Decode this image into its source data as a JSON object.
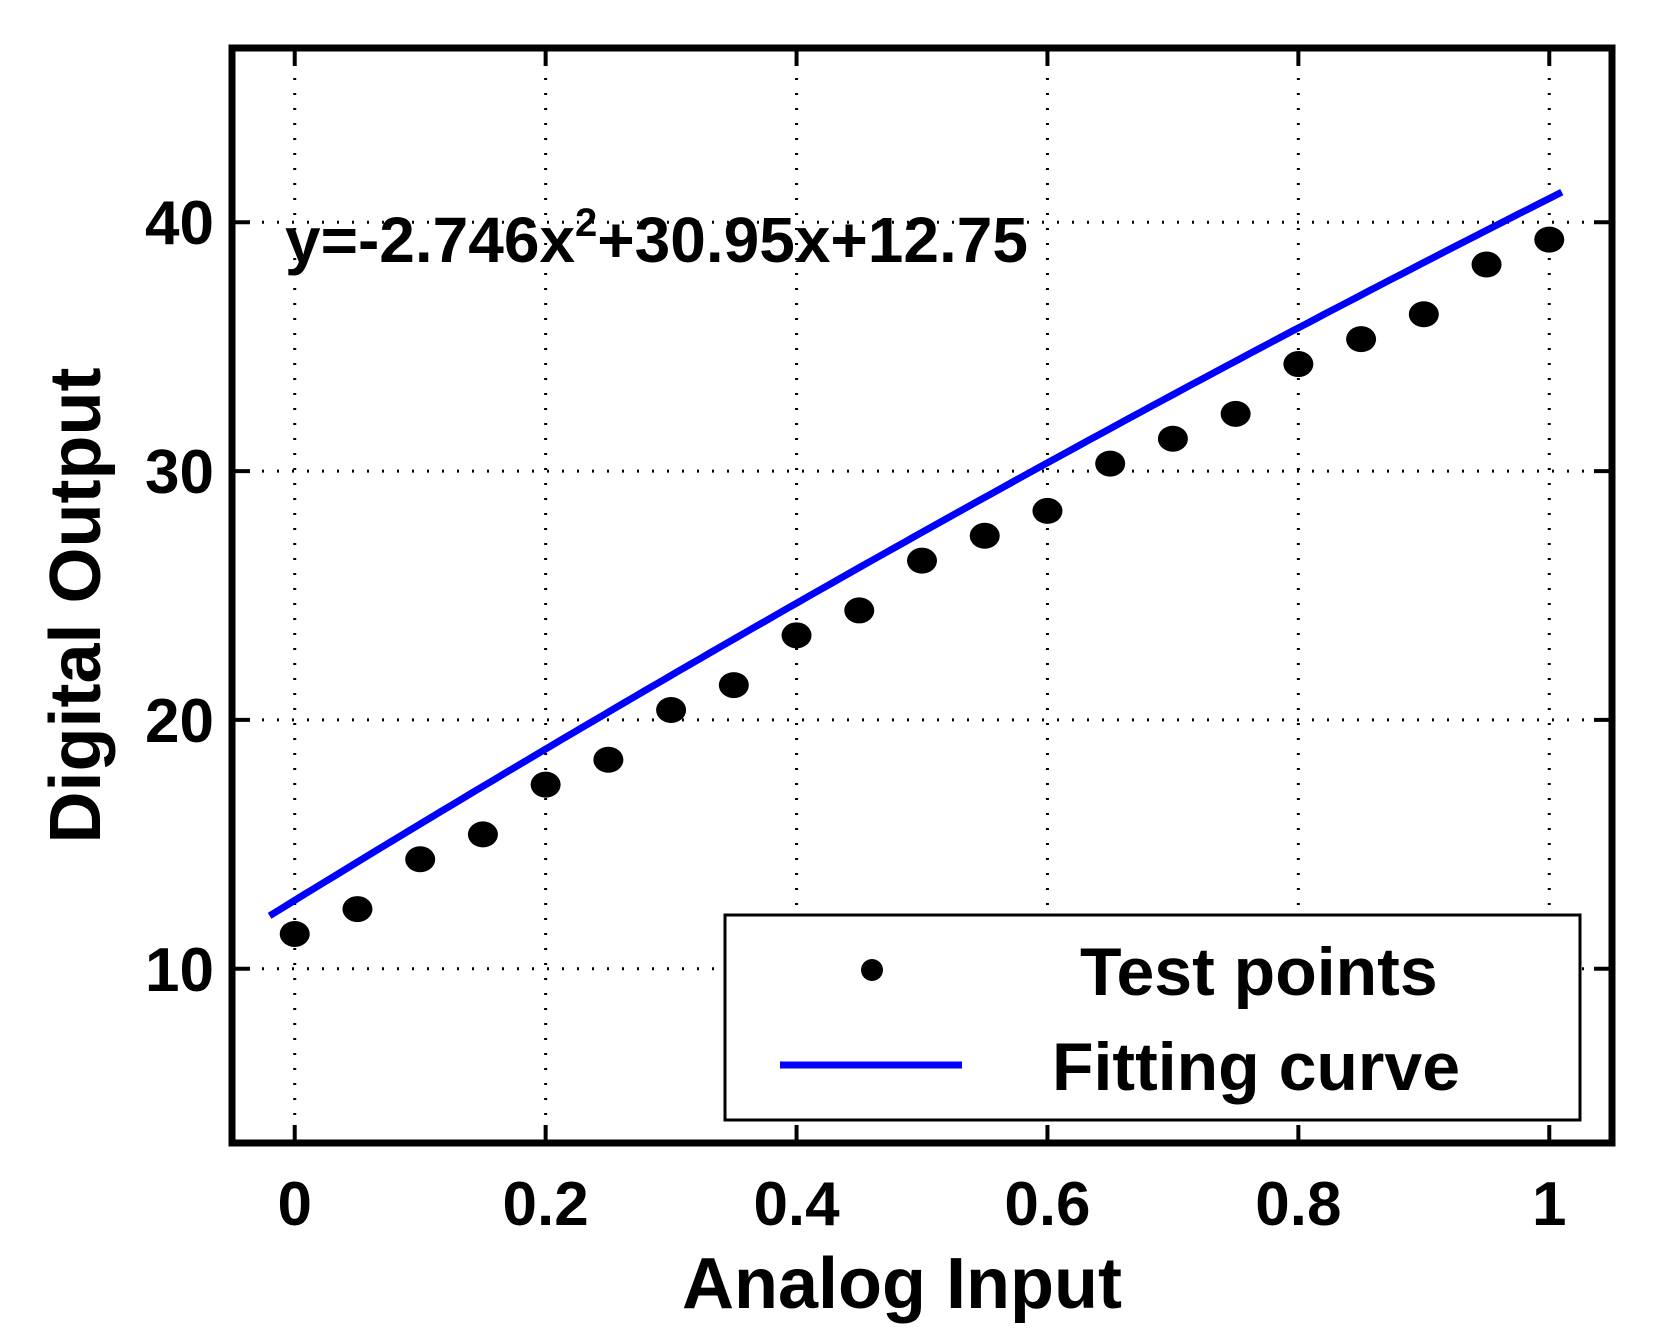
{
  "chart_data": {
    "type": "scatter",
    "xlabel": "Analog Input",
    "ylabel": "Digital Output",
    "xlim": [
      -0.05,
      1.05
    ],
    "ylim": [
      3,
      47
    ],
    "x_ticks": [
      0,
      0.2,
      0.4,
      0.6,
      0.8,
      1
    ],
    "x_tick_labels": [
      "0",
      "0.2",
      "0.4",
      "0.6",
      "0.8",
      "1"
    ],
    "y_ticks": [
      10,
      20,
      30,
      40
    ],
    "y_tick_labels": [
      "10",
      "20",
      "30",
      "40"
    ],
    "grid": true,
    "legend_position": "bottom-right",
    "annotation": {
      "prefix": "y=-2.746x",
      "superscript": "2",
      "suffix": "+30.95x+12.75"
    },
    "series": [
      {
        "name": "Test points",
        "kind": "scatter",
        "color": "#000000",
        "x": [
          0.0,
          0.05,
          0.1,
          0.15,
          0.2,
          0.25,
          0.3,
          0.35,
          0.4,
          0.45,
          0.5,
          0.55,
          0.6,
          0.65,
          0.7,
          0.75,
          0.8,
          0.85,
          0.9,
          0.95,
          1.0
        ],
        "y": [
          11.4,
          12.4,
          14.4,
          15.4,
          17.4,
          18.4,
          20.4,
          21.4,
          23.4,
          24.4,
          26.4,
          27.4,
          28.4,
          30.3,
          31.3,
          32.3,
          34.3,
          35.3,
          36.3,
          38.3,
          39.3
        ]
      },
      {
        "name": "Fitting curve",
        "kind": "line",
        "color": "#0000ff",
        "x_range": [
          -0.02,
          1.01
        ],
        "coefficients": {
          "a": -2.746,
          "b": 30.95,
          "c": 12.75
        }
      }
    ]
  }
}
